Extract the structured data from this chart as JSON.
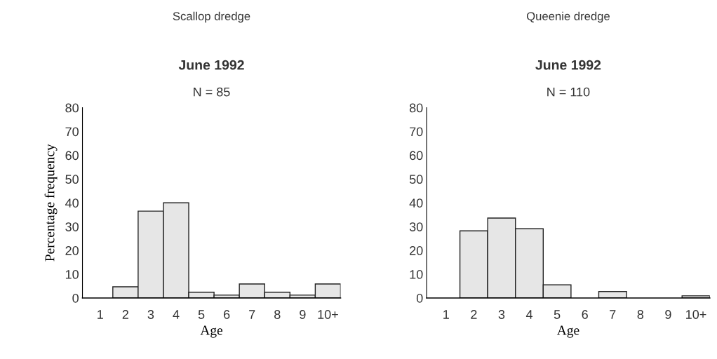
{
  "chart_data": [
    {
      "type": "bar",
      "title": "Scallop dredge",
      "subtitle": "June 1992",
      "annotations": [
        "N = 85"
      ],
      "xlabel": "Age",
      "ylabel": "Percentage frequency",
      "categories": [
        "1",
        "2",
        "3",
        "4",
        "5",
        "6",
        "7",
        "8",
        "9",
        "10+"
      ],
      "values": [
        0,
        4.7,
        36.5,
        40.0,
        2.4,
        1.2,
        5.9,
        2.4,
        1.2,
        5.9
      ],
      "color": "#e6e6e6",
      "ylim": [
        0,
        80
      ],
      "yticks": [
        0,
        10,
        20,
        30,
        40,
        50,
        60,
        70,
        80
      ],
      "grid": false
    },
    {
      "type": "bar",
      "title": "Queenie dredge",
      "subtitle": "June 1992",
      "annotations": [
        "N = 110"
      ],
      "xlabel": "Age",
      "categories": [
        "1",
        "2",
        "3",
        "4",
        "5",
        "6",
        "7",
        "8",
        "9",
        "10+"
      ],
      "values": [
        0,
        28.2,
        33.6,
        29.1,
        5.5,
        0,
        2.7,
        0,
        0,
        0.9
      ],
      "color": "#e6e6e6",
      "ylim": [
        0,
        80
      ],
      "yticks": [
        0,
        10,
        20,
        30,
        40,
        50,
        60,
        70,
        80
      ],
      "grid": false
    }
  ]
}
